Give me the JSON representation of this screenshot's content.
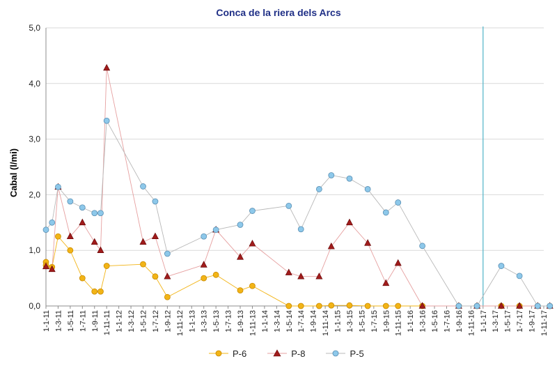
{
  "chart_data": {
    "type": "line",
    "title": "Conca de la riera dels Arcs",
    "xlabel": "",
    "ylabel": "Cabal (l/mi)",
    "ylim": [
      0,
      5
    ],
    "yticks": [
      "0,0",
      "1,0",
      "2,0",
      "3,0",
      "4,0",
      "5,0"
    ],
    "grid": true,
    "legend": "bottom",
    "categories": [
      "1-1-11",
      "1-3-11",
      "1-5-11",
      "1-7-11",
      "1-9-11",
      "1-11-11",
      "1-1-12",
      "1-3-12",
      "1-5-12",
      "1-7-12",
      "1-9-12",
      "1-11-12",
      "1-1-13",
      "1-3-13",
      "1-5-13",
      "1-7-13",
      "1-9-13",
      "1-11-13",
      "1-1-14",
      "1-3-14",
      "1-5-14",
      "1-7-14",
      "1-9-14",
      "1-11-14",
      "1-1-15",
      "1-3-15",
      "1-5-15",
      "1-7-15",
      "1-9-15",
      "1-11-15",
      "1-1-16",
      "1-3-16",
      "1-5-16",
      "1-7-16",
      "1-9-16",
      "1-11-16",
      "1-1-17",
      "1-3-17",
      "1-5-17",
      "1-7-17",
      "1-9-17",
      "1-11-17"
    ],
    "marker_line_date": "1-1-17",
    "series": [
      {
        "name": "P-6",
        "color": "#f2b416",
        "marker": "circle",
        "points": [
          [
            0.0,
            0.79
          ],
          [
            0.0,
            0.73
          ],
          [
            0.5,
            0.7
          ],
          [
            1.0,
            1.25
          ],
          [
            2.0,
            1.0
          ],
          [
            3.0,
            0.5
          ],
          [
            4.0,
            0.26
          ],
          [
            4.5,
            0.26
          ],
          [
            5.0,
            0.72
          ],
          [
            8.0,
            0.75
          ],
          [
            9.0,
            0.53
          ],
          [
            10.0,
            0.16
          ],
          [
            13.0,
            0.5
          ],
          [
            14.0,
            0.56
          ],
          [
            16.0,
            0.28
          ],
          [
            17.0,
            0.36
          ],
          [
            20.0,
            0.0
          ],
          [
            21.0,
            0.0
          ],
          [
            22.5,
            0.0
          ],
          [
            23.5,
            0.01
          ],
          [
            25.0,
            0.01
          ],
          [
            26.5,
            0.0
          ],
          [
            28.0,
            0.0
          ],
          [
            29.0,
            0.0
          ],
          [
            31.0,
            0.0
          ],
          [
            34.0,
            0.0
          ],
          [
            35.5,
            0.0
          ],
          [
            37.5,
            0.0
          ],
          [
            39.0,
            0.0
          ],
          [
            40.5,
            0.0
          ],
          [
            41.5,
            0.0
          ]
        ]
      },
      {
        "name": "P-8",
        "color": "#a01c1c",
        "marker": "triangle",
        "points": [
          [
            0.0,
            0.71
          ],
          [
            0.5,
            0.66
          ],
          [
            1.0,
            2.14
          ],
          [
            2.0,
            1.25
          ],
          [
            3.0,
            1.5
          ],
          [
            4.0,
            1.15
          ],
          [
            4.5,
            1.0
          ],
          [
            5.0,
            4.28
          ],
          [
            8.0,
            1.15
          ],
          [
            9.0,
            1.25
          ],
          [
            10.0,
            0.53
          ],
          [
            13.0,
            0.74
          ],
          [
            14.0,
            1.37
          ],
          [
            16.0,
            0.88
          ],
          [
            17.0,
            1.12
          ],
          [
            20.0,
            0.6
          ],
          [
            21.0,
            0.53
          ],
          [
            22.5,
            0.53
          ],
          [
            23.5,
            1.07
          ],
          [
            25.0,
            1.5
          ],
          [
            26.5,
            1.13
          ],
          [
            28.0,
            0.41
          ],
          [
            29.0,
            0.77
          ],
          [
            31.0,
            0.0
          ],
          [
            34.0,
            0.0
          ],
          [
            35.5,
            0.0
          ],
          [
            37.5,
            0.0
          ],
          [
            39.0,
            0.0
          ],
          [
            40.5,
            0.0
          ],
          [
            41.5,
            0.0
          ]
        ]
      },
      {
        "name": "P-5",
        "color": "#8dc8ea",
        "marker": "circle",
        "points": [
          [
            0.0,
            1.37
          ],
          [
            0.5,
            1.5
          ],
          [
            1.0,
            2.14
          ],
          [
            2.0,
            1.88
          ],
          [
            3.0,
            1.77
          ],
          [
            4.0,
            1.67
          ],
          [
            4.5,
            1.67
          ],
          [
            5.0,
            3.33
          ],
          [
            8.0,
            2.15
          ],
          [
            9.0,
            1.88
          ],
          [
            10.0,
            0.94
          ],
          [
            13.0,
            1.25
          ],
          [
            14.0,
            1.37
          ],
          [
            16.0,
            1.46
          ],
          [
            17.0,
            1.71
          ],
          [
            20.0,
            1.8
          ],
          [
            21.0,
            1.38
          ],
          [
            22.5,
            2.1
          ],
          [
            23.5,
            2.35
          ],
          [
            25.0,
            2.29
          ],
          [
            26.5,
            2.1
          ],
          [
            28.0,
            1.68
          ],
          [
            29.0,
            1.86
          ],
          [
            31.0,
            1.08
          ],
          [
            34.0,
            0.0
          ],
          [
            35.5,
            0.0
          ],
          [
            37.5,
            0.72
          ],
          [
            39.0,
            0.54
          ],
          [
            40.5,
            0.0
          ],
          [
            41.5,
            0.0
          ]
        ]
      }
    ]
  }
}
